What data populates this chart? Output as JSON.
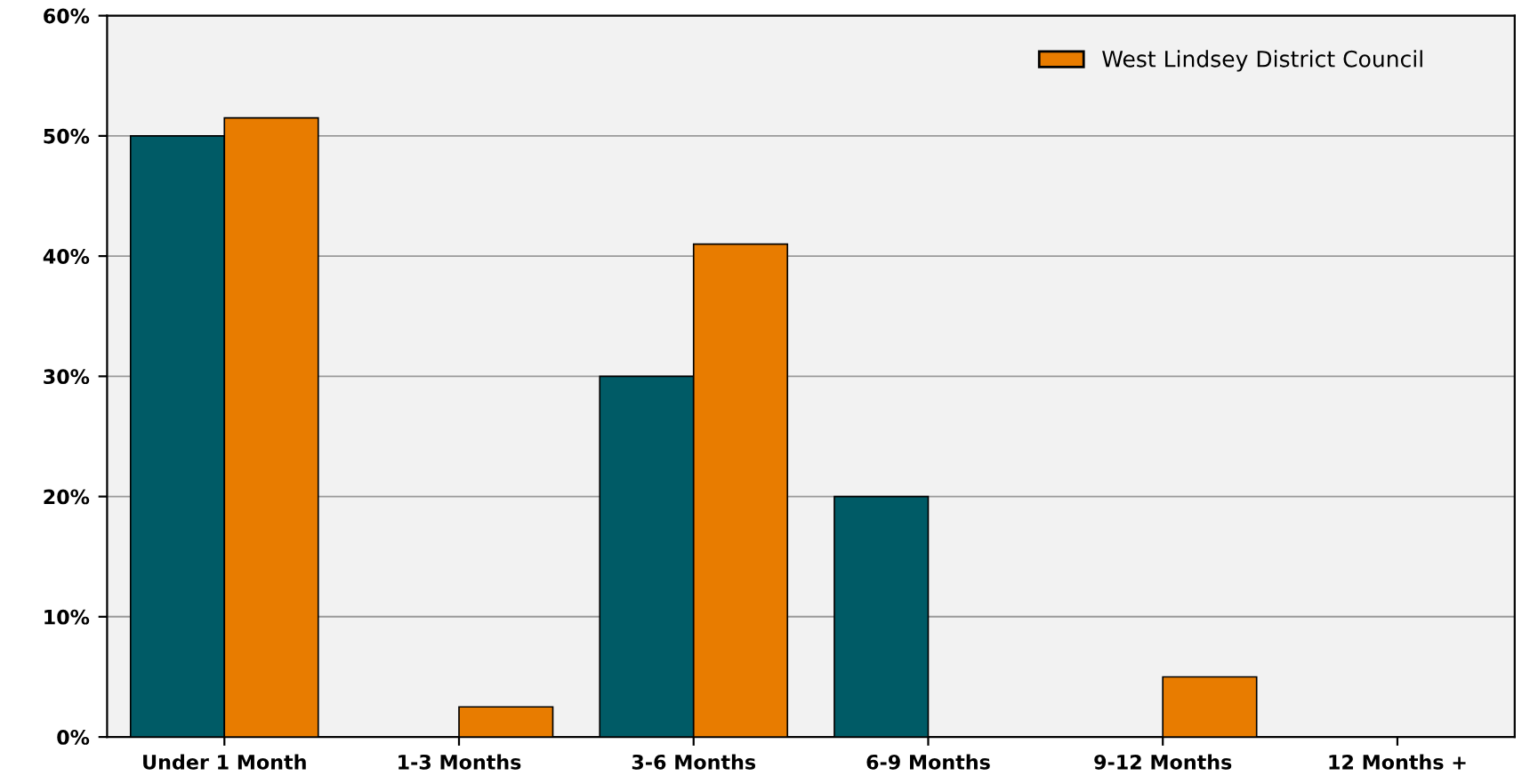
{
  "chart_data": {
    "type": "bar",
    "categories": [
      "Under 1 Month",
      "1-3 Months",
      "3-6 Months",
      "6-9 Months",
      "9-12 Months",
      "12 Months +"
    ],
    "series": [
      {
        "color": "#005b66",
        "values": [
          50,
          0,
          30,
          20,
          0,
          0
        ]
      },
      {
        "name": "West Lindsey District Council",
        "color": "#e87c00",
        "values": [
          51.5,
          2.5,
          41,
          0,
          5,
          0
        ]
      }
    ],
    "ylim": [
      0,
      60
    ],
    "yticks": [
      {
        "value": 0,
        "label": "0%"
      },
      {
        "value": 10,
        "label": "10%"
      },
      {
        "value": 20,
        "label": "20%"
      },
      {
        "value": 30,
        "label": "30%"
      },
      {
        "value": 40,
        "label": "40%"
      },
      {
        "value": 50,
        "label": "50%"
      },
      {
        "value": 60,
        "label": "60%"
      }
    ],
    "grid": "y",
    "legend": "top right"
  }
}
